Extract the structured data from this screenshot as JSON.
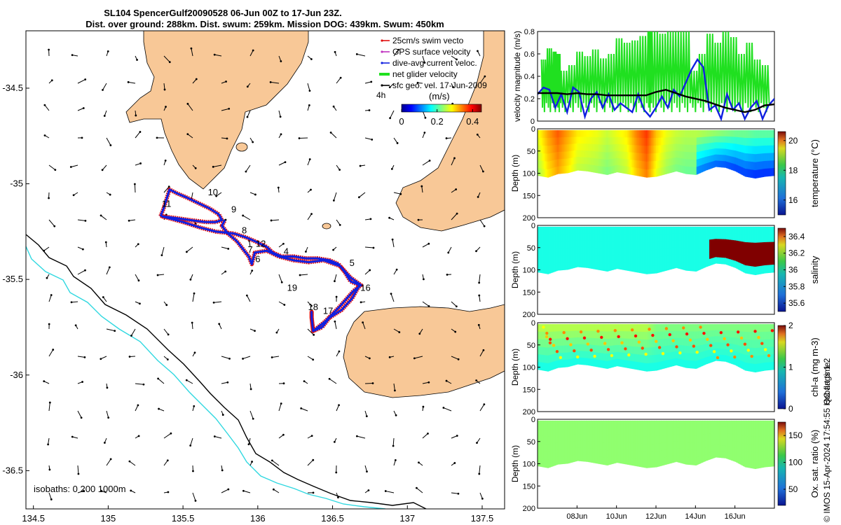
{
  "title": {
    "line1": "SL104 SpencerGulf20090528 06-Jun 00Z to 17-Jun 23Z.",
    "line2": "Dist. over ground: 288km. Dist. swum: 259km. Mission DOG: 439km. Swum: 450km"
  },
  "colors": {
    "land": "#f8c897",
    "track": "#1020e0",
    "swim": "#e01010",
    "gps": "#c030c0",
    "net": "#20e020",
    "coast": "#000000",
    "isobath_1000": "#30d8e0",
    "velocity_line": "#000000"
  },
  "chart_data": [
    {
      "id": "map",
      "type": "scatter",
      "xlim": [
        134.45,
        137.65
      ],
      "ylim": [
        -36.7,
        -34.2
      ],
      "x_ticks": [
        "134.5",
        "135",
        "135.5",
        "136",
        "136.5",
        "137",
        "137.5"
      ],
      "x_tick_values": [
        134.5,
        135,
        135.5,
        136,
        136.5,
        137,
        137.5
      ],
      "y_ticks": [
        "-34.5",
        "-35",
        "-35.5",
        "-36",
        "-36.5"
      ],
      "y_tick_values": [
        -34.5,
        -35,
        -35.5,
        -36,
        -36.5
      ],
      "legend": [
        {
          "label": "25cm/s swim vecto",
          "color": "#e01010"
        },
        {
          "label": "GPS surface velocity",
          "color": "#c030c0"
        },
        {
          "label": "dive-avg current veloc.",
          "color": "#1020e0"
        },
        {
          "label": "net glider velocity",
          "color": "#20e020"
        },
        {
          "label": "sfc geo. vel. 17-Jun-2009",
          "color": "#000000"
        }
      ],
      "colorbar": {
        "label": "(m/s)",
        "ticks": [
          "0",
          "0.2",
          "0.4"
        ],
        "tick_values": [
          0,
          0.2,
          0.4
        ],
        "range": [
          0,
          0.45
        ],
        "extra_label": "4h"
      },
      "isobath_label": "isobaths: 0   200  1000m",
      "day_labels": [
        {
          "text": "10",
          "lon": 135.7,
          "lat": -35.06
        },
        {
          "text": "11",
          "lon": 135.39,
          "lat": -35.12
        },
        {
          "text": "9",
          "lon": 135.84,
          "lat": -35.15
        },
        {
          "text": "8",
          "lon": 135.91,
          "lat": -35.26
        },
        {
          "text": "12",
          "lon": 136.02,
          "lat": -35.33
        },
        {
          "text": "7",
          "lon": 135.95,
          "lat": -35.36
        },
        {
          "text": "6",
          "lon": 136.0,
          "lat": -35.41
        },
        {
          "text": "4",
          "lon": 136.19,
          "lat": -35.37
        },
        {
          "text": "5",
          "lon": 136.63,
          "lat": -35.43
        },
        {
          "text": "16",
          "lon": 136.72,
          "lat": -35.56
        },
        {
          "text": "19",
          "lon": 136.23,
          "lat": -35.56
        },
        {
          "text": "18",
          "lon": 136.37,
          "lat": -35.66
        },
        {
          "text": "17",
          "lon": 136.47,
          "lat": -35.68
        }
      ],
      "track": [
        [
          135.35,
          -35.17
        ],
        [
          135.37,
          -35.13
        ],
        [
          135.39,
          -35.08
        ],
        [
          135.41,
          -35.03
        ],
        [
          135.46,
          -35.05
        ],
        [
          135.52,
          -35.07
        ],
        [
          135.6,
          -35.1
        ],
        [
          135.68,
          -35.13
        ],
        [
          135.74,
          -35.16
        ],
        [
          135.76,
          -35.19
        ],
        [
          135.72,
          -35.2
        ],
        [
          135.65,
          -35.2
        ],
        [
          135.55,
          -35.19
        ],
        [
          135.46,
          -35.18
        ],
        [
          135.36,
          -35.17
        ],
        [
          135.5,
          -35.2
        ],
        [
          135.62,
          -35.23
        ],
        [
          135.72,
          -35.25
        ],
        [
          135.84,
          -35.26
        ],
        [
          135.92,
          -35.28
        ],
        [
          135.98,
          -35.3
        ],
        [
          136.06,
          -35.33
        ],
        [
          136.1,
          -35.36
        ],
        [
          136.16,
          -35.38
        ],
        [
          136.24,
          -35.38
        ],
        [
          136.32,
          -35.39
        ],
        [
          136.4,
          -35.39
        ],
        [
          136.48,
          -35.4
        ],
        [
          136.54,
          -35.42
        ],
        [
          136.58,
          -35.46
        ],
        [
          136.62,
          -35.51
        ],
        [
          136.68,
          -35.53
        ],
        [
          136.63,
          -35.6
        ],
        [
          136.56,
          -35.66
        ],
        [
          136.48,
          -35.7
        ],
        [
          136.43,
          -35.75
        ],
        [
          136.37,
          -35.77
        ],
        [
          136.36,
          -35.7
        ],
        [
          136.36,
          -35.67
        ],
        [
          136.36,
          -35.7
        ],
        [
          136.37,
          -35.77
        ],
        [
          136.45,
          -35.72
        ],
        [
          136.55,
          -35.64
        ],
        [
          136.64,
          -35.56
        ],
        [
          136.69,
          -35.53
        ],
        [
          136.62,
          -35.49
        ],
        [
          136.55,
          -35.43
        ],
        [
          136.44,
          -35.4
        ],
        [
          136.34,
          -35.41
        ],
        [
          136.24,
          -35.4
        ],
        [
          136.14,
          -35.38
        ],
        [
          136.06,
          -35.35
        ],
        [
          135.98,
          -35.36
        ],
        [
          135.96,
          -35.42
        ],
        [
          135.94,
          -35.38
        ],
        [
          135.86,
          -35.3
        ],
        [
          135.8,
          -35.26
        ],
        [
          135.76,
          -35.22
        ],
        [
          135.78,
          -35.19
        ]
      ]
    },
    {
      "id": "velocity",
      "type": "line",
      "ylabel": "velocity magnitude (m/s)",
      "xlim": [
        6.0,
        18.0
      ],
      "ylim": [
        0,
        0.8
      ],
      "y_ticks": [
        "0",
        "0.2",
        "0.4",
        "0.6",
        "0.8"
      ],
      "y_tick_values": [
        0,
        0.2,
        0.4,
        0.6,
        0.8
      ],
      "series": [
        {
          "name": "net glider velocity",
          "x": [
            6.2,
            6.5,
            6.8,
            7.0,
            7.2,
            7.6,
            8.0,
            8.4,
            8.8,
            9.2,
            9.6,
            10.0,
            10.4,
            10.8,
            11.2,
            11.6,
            11.8,
            12.2,
            12.6,
            13.0,
            13.4,
            13.8,
            14.2,
            14.6,
            15.0,
            15.4,
            15.8,
            16.2,
            16.6,
            17.0,
            17.4,
            17.8
          ],
          "y": [
            0.55,
            0.65,
            0.62,
            0.6,
            0.45,
            0.5,
            0.62,
            0.58,
            0.64,
            0.56,
            0.6,
            0.74,
            0.7,
            0.72,
            0.76,
            0.8,
            0.8,
            0.78,
            0.8,
            0.8,
            0.8,
            0.45,
            0.6,
            0.78,
            0.7,
            0.8,
            0.75,
            0.6,
            0.7,
            0.55,
            0.5,
            0.55
          ]
        },
        {
          "name": "dive-avg current veloc.",
          "x": [
            6.0,
            6.3,
            6.6,
            6.9,
            7.2,
            7.5,
            7.8,
            8.1,
            8.4,
            8.7,
            9.0,
            9.3,
            9.6,
            9.9,
            10.2,
            10.5,
            10.8,
            11.1,
            11.4,
            11.7,
            12.0,
            12.3,
            12.6,
            12.9,
            13.2,
            13.5,
            13.8,
            14.1,
            14.4,
            14.7,
            15.0,
            15.3,
            15.6,
            15.9,
            16.2,
            16.5,
            16.8,
            17.1,
            17.4,
            17.7,
            18.0
          ],
          "y": [
            0.24,
            0.3,
            0.28,
            0.12,
            0.24,
            0.08,
            0.3,
            0.26,
            0.04,
            0.2,
            0.26,
            0.12,
            0.24,
            0.1,
            0.16,
            0.12,
            0.08,
            0.24,
            0.1,
            0.04,
            0.12,
            0.22,
            0.12,
            0.28,
            0.22,
            0.34,
            0.46,
            0.55,
            0.48,
            0.1,
            0.14,
            0.02,
            0.24,
            0.1,
            0.16,
            0.02,
            0.12,
            0.18,
            0.02,
            0.14,
            0.2
          ]
        },
        {
          "name": "net glider velocity (smoothed)",
          "x": [
            6.0,
            6.5,
            7.0,
            7.5,
            8.0,
            8.5,
            9.0,
            9.5,
            10.0,
            10.5,
            11.0,
            11.5,
            12.0,
            12.5,
            13.0,
            13.5,
            14.0,
            14.5,
            15.0,
            15.5,
            16.0,
            16.5,
            17.0,
            17.5,
            18.0
          ],
          "y": [
            0.25,
            0.25,
            0.25,
            0.24,
            0.25,
            0.24,
            0.24,
            0.23,
            0.23,
            0.23,
            0.23,
            0.23,
            0.26,
            0.28,
            0.25,
            0.22,
            0.2,
            0.18,
            0.15,
            0.12,
            0.1,
            0.08,
            0.1,
            0.14,
            0.15
          ]
        }
      ]
    },
    {
      "id": "temperature",
      "type": "heatmap",
      "ylabel": "Depth (m)",
      "cbar_label": "temperature (°C)",
      "ylim": [
        0,
        200
      ],
      "y_ticks": [
        "0",
        "50",
        "100",
        "150",
        "200"
      ],
      "y_tick_values": [
        0,
        50,
        100,
        150,
        200
      ],
      "cbar_ticks": [
        "16",
        "18",
        "20"
      ],
      "cbar_tick_values": [
        16,
        18,
        20
      ],
      "cbar_range": [
        15,
        20.6
      ],
      "x": [
        6.0,
        6.5,
        7.0,
        7.5,
        8.0,
        8.5,
        9.0,
        9.5,
        10.0,
        10.5,
        11.0,
        11.5,
        12.0,
        12.5,
        13.0,
        13.5,
        14.0,
        14.5,
        15.0,
        15.5,
        16.0,
        16.5,
        17.0,
        17.5,
        18.0
      ],
      "bottom_depth": [
        102,
        106,
        98,
        96,
        90,
        92,
        96,
        100,
        94,
        98,
        102,
        106,
        104,
        98,
        92,
        98,
        100,
        90,
        82,
        84,
        92,
        104,
        108,
        104,
        102
      ],
      "surface_value": [
        18.4,
        19.0,
        19.4,
        19.0,
        18.6,
        18.5,
        18.4,
        18.2,
        18.4,
        18.6,
        19.2,
        19.6,
        18.8,
        18.4,
        18.2,
        18.1,
        18.1,
        18.0,
        17.9,
        17.8,
        17.7,
        17.7,
        17.6,
        17.6,
        17.6
      ]
    },
    {
      "id": "salinity",
      "type": "heatmap",
      "ylabel": "Depth (m)",
      "cbar_label": "salinity",
      "ylim": [
        0,
        200
      ],
      "y_ticks": [
        "0",
        "50",
        "100",
        "150",
        "200"
      ],
      "y_tick_values": [
        0,
        50,
        100,
        150,
        200
      ],
      "cbar_ticks": [
        "35.6",
        "35.8",
        "36",
        "36.2",
        "36.4"
      ],
      "cbar_tick_values": [
        35.6,
        35.8,
        36.0,
        36.2,
        36.4
      ],
      "cbar_range": [
        35.5,
        36.5
      ],
      "x": [
        6.0,
        6.5,
        7.0,
        7.5,
        8.0,
        8.5,
        9.0,
        9.5,
        10.0,
        10.5,
        11.0,
        11.5,
        12.0,
        12.5,
        13.0,
        13.5,
        14.0,
        14.5,
        15.0,
        15.5,
        16.0,
        16.5,
        17.0,
        17.5,
        18.0
      ],
      "bottom_depth": [
        102,
        106,
        98,
        96,
        90,
        92,
        96,
        100,
        94,
        98,
        102,
        106,
        104,
        98,
        92,
        98,
        100,
        90,
        82,
        84,
        92,
        104,
        108,
        104,
        102
      ],
      "surface_value": [
        35.9,
        35.9,
        35.9,
        35.9,
        35.9,
        35.9,
        35.9,
        35.9,
        35.9,
        35.9,
        35.9,
        35.9,
        35.9,
        35.9,
        35.9,
        35.9,
        35.9,
        35.9,
        35.9,
        35.9,
        35.9,
        35.9,
        35.9,
        35.9,
        35.9
      ],
      "high_patch": {
        "x_start": 14.7,
        "value": 36.5
      }
    },
    {
      "id": "chla",
      "type": "heatmap",
      "ylabel": "Depth (m)",
      "cbar_label": "chl-a (mg m-3)",
      "ylim": [
        0,
        200
      ],
      "y_ticks": [
        "0",
        "50",
        "100",
        "150",
        "200"
      ],
      "y_tick_values": [
        0,
        50,
        100,
        150,
        200
      ],
      "cbar_ticks": [
        "0",
        "1",
        "2"
      ],
      "cbar_tick_values": [
        0,
        1,
        2
      ],
      "cbar_range": [
        0,
        2
      ],
      "x": [
        6.0,
        6.5,
        7.0,
        7.5,
        8.0,
        8.5,
        9.0,
        9.5,
        10.0,
        10.5,
        11.0,
        11.5,
        12.0,
        12.5,
        13.0,
        13.5,
        14.0,
        14.5,
        15.0,
        15.5,
        16.0,
        16.5,
        17.0,
        17.5,
        18.0
      ],
      "bottom_depth": [
        102,
        106,
        98,
        96,
        90,
        92,
        96,
        100,
        94,
        98,
        102,
        106,
        104,
        98,
        92,
        98,
        100,
        90,
        82,
        84,
        92,
        104,
        108,
        104,
        102
      ],
      "surface_value": [
        1.1,
        1.1,
        1.1,
        1.1,
        1.1,
        1.1,
        1.1,
        1.1,
        1.1,
        1.1,
        1.1,
        1.1,
        1.0,
        1.0,
        1.0,
        1.0,
        1.0,
        1.0,
        1.0,
        1.0,
        1.0,
        1.0,
        1.0,
        1.0,
        1.0
      ],
      "deep_value": 0.8
    },
    {
      "id": "oxygen",
      "type": "heatmap",
      "ylabel": "Depth (m)",
      "cbar_label": "Ox. sat. ratio (%)",
      "ylim": [
        0,
        200
      ],
      "y_ticks": [
        "0",
        "50",
        "100",
        "150",
        "200"
      ],
      "y_tick_values": [
        0,
        50,
        100,
        150,
        200
      ],
      "cbar_ticks": [
        "50",
        "100",
        "150"
      ],
      "cbar_tick_values": [
        50,
        100,
        150
      ],
      "cbar_range": [
        20,
        175
      ],
      "x_ticks": [
        "08Jun",
        "10Jun",
        "12Jun",
        "14Jun",
        "16Jun"
      ],
      "x_tick_values": [
        8,
        10,
        12,
        14,
        16
      ],
      "x": [
        6.0,
        6.5,
        7.0,
        7.5,
        8.0,
        8.5,
        9.0,
        9.5,
        10.0,
        10.5,
        11.0,
        11.5,
        12.0,
        12.5,
        13.0,
        13.5,
        14.0,
        14.5,
        15.0,
        15.5,
        16.0,
        16.5,
        17.0,
        17.5,
        18.0
      ],
      "bottom_depth": [
        102,
        106,
        98,
        96,
        90,
        92,
        96,
        100,
        94,
        98,
        102,
        106,
        104,
        98,
        92,
        98,
        100,
        90,
        82,
        84,
        92,
        104,
        108,
        104,
        102
      ],
      "surface_value": [
        100,
        100,
        100,
        100,
        100,
        100,
        100,
        100,
        100,
        100,
        100,
        100,
        100,
        100,
        100,
        100,
        100,
        100,
        100,
        100,
        100,
        100,
        100,
        100,
        100
      ]
    }
  ],
  "footer": {
    "qc_flags": "QC flags 1 2",
    "credit": "© IMOS 15-Apr-2024 17:54:55 Hobart time."
  }
}
